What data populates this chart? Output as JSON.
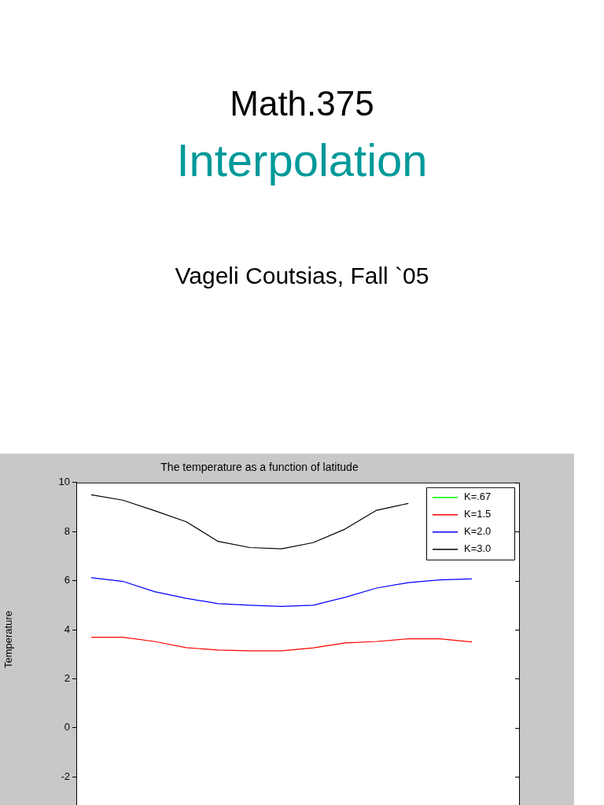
{
  "chart_data": {
    "type": "line",
    "title": "The temperature as a function of latitude",
    "ylabel": "Temperature",
    "annotations": [
      "Math.375",
      "Interpolation",
      "Vageli Coutsias, Fall `05"
    ],
    "categories": [
      null,
      null,
      null,
      null,
      null,
      null,
      null,
      null,
      null,
      null,
      null,
      null,
      null
    ],
    "series": [
      {
        "name": "K=.67",
        "color": "#00ff00",
        "values": [
          null,
          null,
          null,
          null,
          null,
          null,
          null,
          null,
          null,
          null,
          null,
          null,
          null
        ]
      },
      {
        "name": "K=1.5",
        "color": "#ff0000",
        "values": [
          3.69,
          3.69,
          3.52,
          3.27,
          3.17,
          3.14,
          3.14,
          3.26,
          3.46,
          3.52,
          3.63,
          3.63,
          3.5
        ]
      },
      {
        "name": "K=2.0",
        "color": "#0000ff",
        "values": [
          6.12,
          5.97,
          5.55,
          5.28,
          5.06,
          5.0,
          4.95,
          5.0,
          5.32,
          5.7,
          5.92,
          6.03,
          6.07
        ]
      },
      {
        "name": "K=3.0",
        "color": "#000000",
        "values": [
          9.5,
          9.28,
          8.85,
          8.4,
          7.6,
          7.35,
          7.3,
          7.55,
          8.1,
          8.87,
          9.15,
          null,
          null
        ]
      }
    ],
    "ylim": [
      -2.8,
      10
    ],
    "yticks": [
      -2,
      0,
      2,
      4,
      6,
      8,
      10
    ],
    "grid": false,
    "legend": "top right",
    "marker": "none",
    "line_style": "solid"
  }
}
